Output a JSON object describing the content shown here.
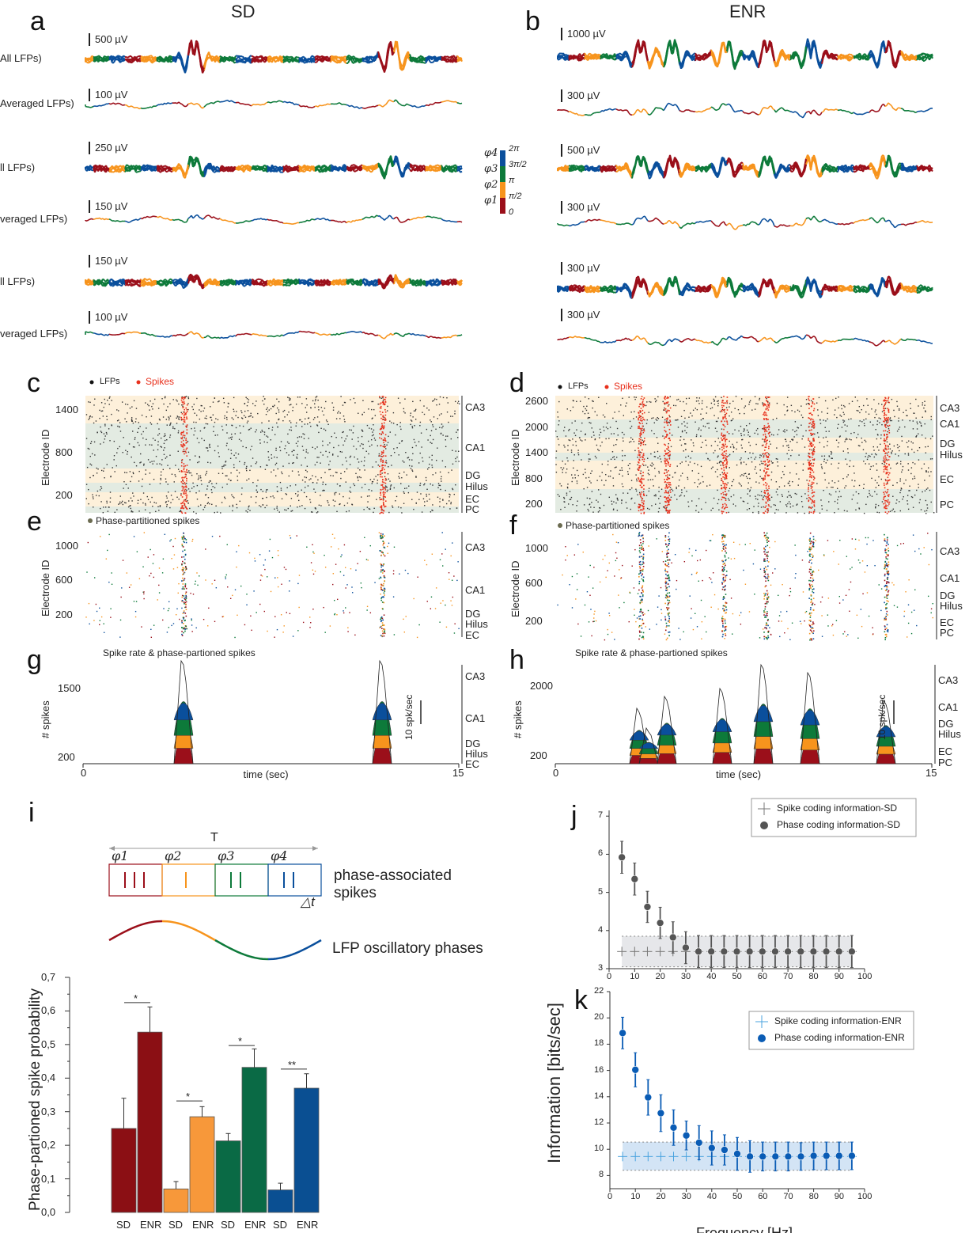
{
  "panels": {
    "a": {
      "letter": "a",
      "heading": "SD",
      "rows": [
        {
          "label": "All LFPs)",
          "scale": "500 µV"
        },
        {
          "label": "Averaged LFPs)",
          "scale": "100 µV"
        },
        {
          "label": "ll LFPs)",
          "scale": "250 µV"
        },
        {
          "label": "veraged LFPs)",
          "scale": "150 µV"
        },
        {
          "label": "ll LFPs)",
          "scale": "150 µV"
        },
        {
          "label": "veraged LFPs)",
          "scale": "100 µV"
        }
      ]
    },
    "b": {
      "letter": "b",
      "heading": "ENR",
      "rows": [
        {
          "scale": "1000 µV"
        },
        {
          "scale": "300 µV"
        },
        {
          "scale": "500 µV"
        },
        {
          "scale": "300 µV"
        },
        {
          "scale": "300 µV"
        },
        {
          "scale": "300 µV"
        }
      ]
    },
    "phase_legend": {
      "phases": [
        "φ4",
        "φ3",
        "φ2",
        "φ1"
      ],
      "ticks": [
        "2π",
        "3π/2",
        "π",
        "π/2",
        "0"
      ],
      "colors": [
        "#0a4f9c",
        "#0d7a3a",
        "#f7941d",
        "#9b0f1a"
      ]
    },
    "c": {
      "letter": "c",
      "legend": [
        "LFPs",
        "Spikes"
      ],
      "ylabel": "Electrode ID",
      "yticks": [
        "1400",
        "800",
        "200"
      ],
      "regions": [
        "CA3",
        "CA1",
        "DG",
        "Hilus",
        "EC",
        "PC"
      ]
    },
    "d": {
      "letter": "d",
      "legend": [
        "LFPs",
        "Spikes"
      ],
      "ylabel": "Electrode ID",
      "yticks": [
        "2600",
        "2000",
        "1400",
        "800",
        "200"
      ],
      "regions": [
        "CA3",
        "CA1",
        "DG",
        "Hilus",
        "EC",
        "PC"
      ]
    },
    "e": {
      "letter": "e",
      "legend": "Phase-partitioned spikes",
      "ylabel": "Electrode ID",
      "yticks": [
        "1000",
        "600",
        "200"
      ],
      "regions": [
        "CA3",
        "CA1",
        "DG",
        "Hilus",
        "EC"
      ]
    },
    "f": {
      "letter": "f",
      "legend": "Phase-partitioned spikes",
      "ylabel": "Electrode ID",
      "yticks": [
        "1000",
        "600",
        "200"
      ],
      "regions": [
        "CA3",
        "CA1",
        "DG",
        "Hilus",
        "EC",
        "PC"
      ]
    },
    "g": {
      "letter": "g",
      "title": "Spike rate & phase-partioned spikes",
      "ylabel": "# spikes",
      "yticks": [
        "1500",
        "200"
      ],
      "xticks": [
        "0",
        "15"
      ],
      "xlabel": "time (sec)",
      "scalebar": "10 spk/sec",
      "regions": [
        "CA3",
        "CA1",
        "DG",
        "Hilus",
        "EC"
      ],
      "burst_times_sec": [
        3.9,
        11.9
      ]
    },
    "h": {
      "letter": "h",
      "title": "Spike rate & phase-partioned spikes",
      "ylabel": "# spikes",
      "yticks": [
        "2000",
        "200"
      ],
      "xticks": [
        "0",
        "15"
      ],
      "xlabel": "time (sec)",
      "scalebar": "10 spk/sec",
      "regions": [
        "CA3",
        "CA1",
        "DG",
        "Hilus",
        "EC",
        "PC"
      ],
      "burst_times_sec": [
        3.4,
        4.4,
        6.7,
        8.3,
        10.1,
        13.1
      ]
    },
    "i": {
      "letter": "i",
      "period": "T",
      "phases": [
        "φ1",
        "φ2",
        "φ3",
        "φ4"
      ],
      "dt": "△t",
      "box_label": "phase-associated spikes",
      "wave_label": "LFP oscillatory phases"
    },
    "j": {
      "letter": "j"
    },
    "k": {
      "letter": "k"
    },
    "jk_ylabel": "Information [bits/sec]",
    "jk_xlabel": "Frequency [Hz]"
  },
  "chart_data": [
    {
      "id": "i-bars",
      "type": "bar",
      "ylabel": "Phase-partioned spike probability",
      "categories": [
        "SD",
        "ENR",
        "SD",
        "ENR",
        "SD",
        "ENR",
        "SD",
        "ENR"
      ],
      "values": [
        0.25,
        0.537,
        0.07,
        0.285,
        0.213,
        0.432,
        0.067,
        0.37
      ],
      "errors": [
        0.09,
        0.075,
        0.022,
        0.03,
        0.022,
        0.055,
        0.02,
        0.043
      ],
      "colors": [
        "#8b0f14",
        "#8b0f14",
        "#f7983a",
        "#f7983a",
        "#0a6a45",
        "#0a6a45",
        "#0a4f92",
        "#0a4f92"
      ],
      "significance": [
        "*",
        "*",
        "*",
        "**"
      ],
      "yticks": [
        "0,0",
        "0,1",
        "0,2",
        "0,3",
        "0,4",
        "0,5",
        "0,6",
        "0,7"
      ],
      "ylim": [
        0,
        0.7
      ]
    },
    {
      "id": "j",
      "type": "scatter",
      "xlim": [
        0,
        100
      ],
      "ylim": [
        2.5,
        7
      ],
      "xticks": [
        "0",
        "10",
        "20",
        "30",
        "40",
        "50",
        "60",
        "70",
        "80",
        "90",
        "100"
      ],
      "yticks": [
        "3",
        "4",
        "5",
        "6",
        "7"
      ],
      "x": [
        5,
        10,
        15,
        20,
        25,
        30,
        35,
        40,
        45,
        50,
        55,
        60,
        65,
        70,
        75,
        80,
        85,
        90,
        95
      ],
      "series": [
        {
          "name": "Spike coding information-SD",
          "marker": "cross",
          "color": "#777777",
          "values": [
            3.45,
            3.45,
            3.45,
            3.45,
            3.45,
            3.45,
            3.45,
            3.45,
            3.45,
            3.45,
            3.45,
            3.45,
            3.45,
            3.45,
            3.45,
            3.45,
            3.45,
            3.45,
            3.45
          ],
          "band": [
            3.05,
            3.85
          ]
        },
        {
          "name": "Phase coding information-SD",
          "marker": "sphere",
          "color": "#555555",
          "values": [
            5.92,
            5.35,
            4.62,
            4.2,
            3.82,
            3.55,
            3.45,
            3.45,
            3.45,
            3.45,
            3.45,
            3.45,
            3.45,
            3.45,
            3.45,
            3.45,
            3.45,
            3.45,
            3.45
          ],
          "errors": [
            0.42,
            0.42,
            0.41,
            0.41,
            0.41,
            0.42,
            0.42,
            0.42,
            0.42,
            0.42,
            0.42,
            0.42,
            0.42,
            0.42,
            0.42,
            0.42,
            0.42,
            0.42,
            0.42
          ]
        }
      ],
      "legend": "top-right"
    },
    {
      "id": "k",
      "type": "scatter",
      "xlim": [
        0,
        100
      ],
      "ylim": [
        7,
        22
      ],
      "xticks": [
        "0",
        "10",
        "20",
        "30",
        "40",
        "50",
        "60",
        "70",
        "80",
        "90",
        "100"
      ],
      "yticks": [
        "8",
        "10",
        "12",
        "14",
        "16",
        "18",
        "20",
        "22"
      ],
      "x": [
        5,
        10,
        15,
        20,
        25,
        30,
        35,
        40,
        45,
        50,
        55,
        60,
        65,
        70,
        75,
        80,
        85,
        90,
        95
      ],
      "series": [
        {
          "name": "Spike coding information-ENR",
          "marker": "cross",
          "color": "#4aa3df",
          "values": [
            9.45,
            9.45,
            9.45,
            9.45,
            9.45,
            9.45,
            9.45,
            9.45,
            9.45,
            9.45,
            9.45,
            9.45,
            9.45,
            9.45,
            9.45,
            9.45,
            9.45,
            9.45,
            9.45
          ],
          "band": [
            8.4,
            10.55
          ]
        },
        {
          "name": "Phase coding information-ENR",
          "marker": "sphere",
          "color": "#0a5cb5",
          "values": [
            18.85,
            16.05,
            13.95,
            12.75,
            11.65,
            11.05,
            10.5,
            10.1,
            9.95,
            9.65,
            9.45,
            9.45,
            9.45,
            9.45,
            9.45,
            9.5,
            9.5,
            9.5,
            9.5
          ],
          "errors": [
            1.2,
            1.3,
            1.35,
            1.4,
            1.35,
            1.1,
            1.3,
            1.3,
            1.15,
            1.25,
            1.2,
            1.1,
            1.1,
            1.1,
            1.05,
            1.05,
            1.05,
            1.05,
            1.05
          ]
        }
      ],
      "legend": "top-right"
    }
  ]
}
